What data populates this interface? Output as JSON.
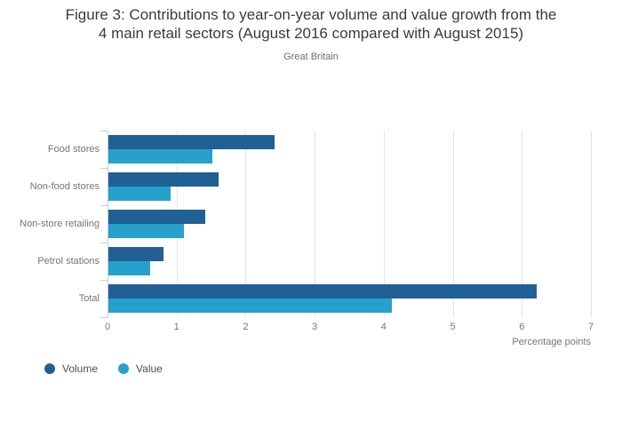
{
  "chart_data": {
    "type": "bar",
    "orientation": "horizontal",
    "title": "Figure 3: Contributions to year-on-year volume and value growth from the 4 main retail sectors (August 2016 compared with August 2015)",
    "title_lines": [
      "Figure 3: Contributions to year-on-year volume and value growth from the",
      "4 main retail sectors (August 2016 compared with August 2015)"
    ],
    "subtitle": "Great Britain",
    "categories": [
      "Food stores",
      "Non-food stores",
      "Non-store retailing",
      "Petrol stations",
      "Total"
    ],
    "series": [
      {
        "name": "Volume",
        "color": "#206095",
        "values": [
          2.4,
          1.6,
          1.4,
          0.8,
          6.2
        ]
      },
      {
        "name": "Value",
        "color": "#27A0CC",
        "values": [
          1.5,
          0.9,
          1.1,
          0.6,
          4.1
        ]
      }
    ],
    "xlabel": "Percentage points",
    "xlim": [
      0,
      7
    ],
    "xticks": [
      0,
      1,
      2,
      3,
      4,
      5,
      6,
      7
    ],
    "grid": true,
    "legend_position": "bottom-left",
    "colors": {
      "axis_line": "#c4d0dc",
      "grid_line": "#e4e4e4",
      "tick_text": "#757575",
      "title_text": "#3b3b3b"
    }
  }
}
